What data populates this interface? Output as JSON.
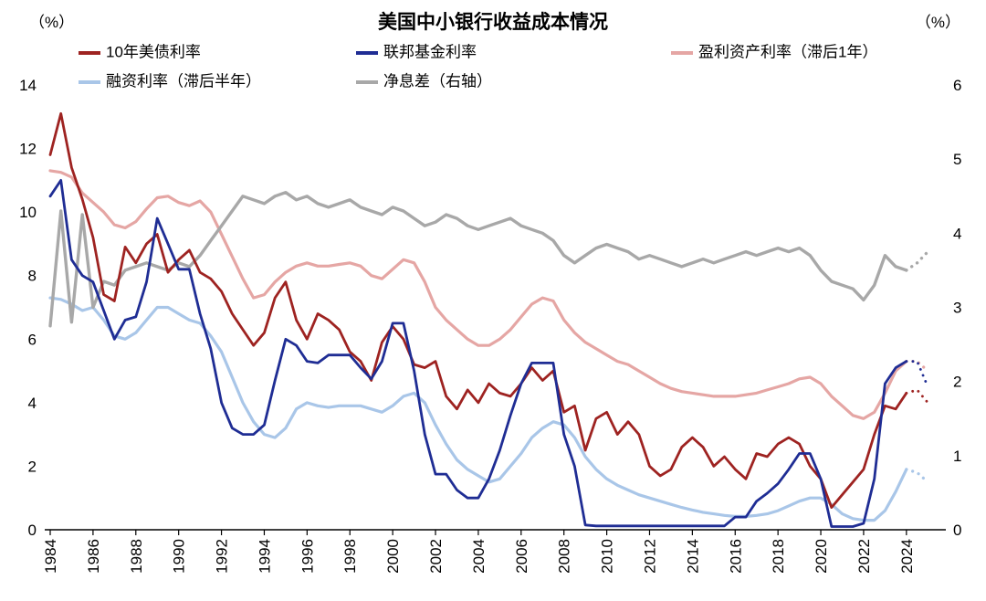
{
  "chart_data": {
    "type": "line",
    "title": "美国中小银行收益成本情况",
    "legend_position": "top",
    "grid": false,
    "x_range": [
      1984,
      2025.5
    ],
    "x_ticks": [
      1984,
      1986,
      1988,
      1990,
      1992,
      1994,
      1996,
      1998,
      2000,
      2002,
      2004,
      2006,
      2008,
      2010,
      2012,
      2014,
      2016,
      2018,
      2020,
      2022,
      2024
    ],
    "x_start": 1984,
    "x_step": 0.5,
    "dotted_forecast_from_x": 2024,
    "left_axis": {
      "unit": "（%）",
      "range": [
        0,
        14
      ],
      "ticks": [
        0,
        2,
        4,
        6,
        8,
        10,
        12,
        14
      ]
    },
    "right_axis": {
      "unit": "（%）",
      "range": [
        0,
        6
      ],
      "ticks": [
        0,
        1,
        2,
        3,
        4,
        5,
        6
      ]
    },
    "series": [
      {
        "name": "10年美债利率",
        "color": "#9e2321",
        "axis": "left",
        "width": 2.8,
        "values": [
          11.8,
          13.1,
          11.4,
          10.4,
          9.2,
          7.4,
          7.2,
          8.9,
          8.4,
          9.0,
          9.3,
          8.1,
          8.5,
          8.8,
          8.1,
          7.9,
          7.5,
          6.8,
          6.3,
          5.8,
          6.2,
          7.3,
          7.8,
          6.6,
          6.0,
          6.8,
          6.6,
          6.3,
          5.6,
          5.3,
          4.7,
          5.9,
          6.4,
          6.0,
          5.2,
          5.1,
          5.3,
          4.2,
          3.8,
          4.4,
          4.0,
          4.6,
          4.3,
          4.2,
          4.6,
          5.1,
          4.7,
          5.0,
          3.7,
          3.9,
          2.5,
          3.5,
          3.7,
          3.0,
          3.4,
          3.0,
          2.0,
          1.7,
          1.9,
          2.6,
          2.9,
          2.6,
          2.0,
          2.3,
          1.9,
          1.6,
          2.4,
          2.3,
          2.7,
          2.9,
          2.7,
          2.0,
          1.6,
          0.7,
          1.1,
          1.5,
          1.9,
          3.0,
          3.9,
          3.8,
          4.3,
          4.4,
          4.0
        ]
      },
      {
        "name": "联邦基金利率",
        "color": "#1f2d94",
        "axis": "left",
        "width": 2.8,
        "values": [
          10.5,
          11.0,
          8.5,
          8.0,
          7.8,
          6.9,
          6.0,
          6.6,
          6.7,
          7.8,
          9.8,
          9.0,
          8.2,
          8.2,
          6.8,
          5.7,
          4.0,
          3.2,
          3.0,
          3.0,
          3.3,
          4.7,
          6.0,
          5.8,
          5.3,
          5.25,
          5.5,
          5.5,
          5.5,
          5.1,
          4.75,
          5.3,
          6.5,
          6.5,
          5.0,
          3.0,
          1.75,
          1.75,
          1.25,
          1.0,
          1.0,
          1.6,
          2.5,
          3.6,
          4.6,
          5.25,
          5.25,
          5.25,
          3.0,
          2.0,
          0.15,
          0.12,
          0.12,
          0.12,
          0.12,
          0.12,
          0.12,
          0.12,
          0.12,
          0.12,
          0.12,
          0.12,
          0.12,
          0.12,
          0.4,
          0.4,
          0.9,
          1.15,
          1.45,
          1.9,
          2.4,
          2.4,
          1.6,
          0.1,
          0.1,
          0.1,
          0.2,
          1.6,
          4.6,
          5.1,
          5.3,
          5.3,
          4.5
        ]
      },
      {
        "name": "盈利资产利率（滞后1年）",
        "color": "#e5a6a4",
        "axis": "left",
        "width": 3.2,
        "values": [
          11.3,
          11.25,
          11.1,
          10.6,
          10.3,
          10.0,
          9.6,
          9.5,
          9.7,
          10.1,
          10.45,
          10.5,
          10.3,
          10.2,
          10.35,
          10.0,
          9.3,
          8.6,
          7.9,
          7.3,
          7.4,
          7.8,
          8.1,
          8.3,
          8.4,
          8.3,
          8.3,
          8.35,
          8.4,
          8.3,
          8.0,
          7.9,
          8.2,
          8.5,
          8.4,
          7.8,
          7.0,
          6.6,
          6.3,
          6.0,
          5.8,
          5.8,
          6.0,
          6.3,
          6.7,
          7.1,
          7.3,
          7.2,
          6.6,
          6.2,
          5.9,
          5.7,
          5.5,
          5.3,
          5.2,
          5.0,
          4.8,
          4.6,
          4.45,
          4.35,
          4.3,
          4.25,
          4.2,
          4.2,
          4.2,
          4.25,
          4.3,
          4.4,
          4.5,
          4.6,
          4.75,
          4.8,
          4.6,
          4.2,
          3.9,
          3.6,
          3.5,
          3.7,
          4.3,
          5.0,
          5.3,
          5.3,
          5.0
        ]
      },
      {
        "name": "融资利率（滞后半年）",
        "color": "#a9c6e8",
        "axis": "left",
        "width": 3.2,
        "values": [
          7.3,
          7.25,
          7.1,
          6.9,
          7.0,
          6.6,
          6.1,
          6.0,
          6.2,
          6.6,
          7.0,
          7.0,
          6.8,
          6.6,
          6.5,
          6.1,
          5.6,
          4.8,
          4.0,
          3.4,
          3.0,
          2.9,
          3.2,
          3.8,
          4.0,
          3.9,
          3.85,
          3.9,
          3.9,
          3.9,
          3.8,
          3.7,
          3.9,
          4.2,
          4.3,
          4.0,
          3.3,
          2.7,
          2.2,
          1.9,
          1.7,
          1.5,
          1.6,
          2.0,
          2.4,
          2.9,
          3.2,
          3.4,
          3.3,
          2.9,
          2.3,
          1.9,
          1.6,
          1.4,
          1.25,
          1.1,
          1.0,
          0.9,
          0.8,
          0.7,
          0.62,
          0.55,
          0.5,
          0.45,
          0.42,
          0.42,
          0.45,
          0.5,
          0.6,
          0.75,
          0.9,
          1.0,
          1.0,
          0.8,
          0.5,
          0.35,
          0.3,
          0.3,
          0.6,
          1.2,
          1.9,
          1.8,
          1.5
        ]
      },
      {
        "name": "净息差（右轴）",
        "color": "#a8a8a8",
        "axis": "right",
        "width": 3.4,
        "values": [
          2.75,
          4.3,
          2.8,
          4.25,
          3.0,
          3.35,
          3.3,
          3.5,
          3.55,
          3.6,
          3.55,
          3.5,
          3.6,
          3.55,
          3.7,
          3.9,
          4.1,
          4.3,
          4.5,
          4.45,
          4.4,
          4.5,
          4.55,
          4.45,
          4.5,
          4.4,
          4.35,
          4.4,
          4.45,
          4.35,
          4.3,
          4.25,
          4.35,
          4.3,
          4.2,
          4.1,
          4.15,
          4.25,
          4.2,
          4.1,
          4.05,
          4.1,
          4.15,
          4.2,
          4.1,
          4.05,
          4.0,
          3.9,
          3.7,
          3.6,
          3.7,
          3.8,
          3.85,
          3.8,
          3.75,
          3.65,
          3.7,
          3.65,
          3.6,
          3.55,
          3.6,
          3.65,
          3.6,
          3.65,
          3.7,
          3.75,
          3.7,
          3.75,
          3.8,
          3.75,
          3.8,
          3.7,
          3.5,
          3.35,
          3.3,
          3.25,
          3.1,
          3.3,
          3.7,
          3.55,
          3.5,
          3.6,
          3.75
        ]
      }
    ]
  }
}
